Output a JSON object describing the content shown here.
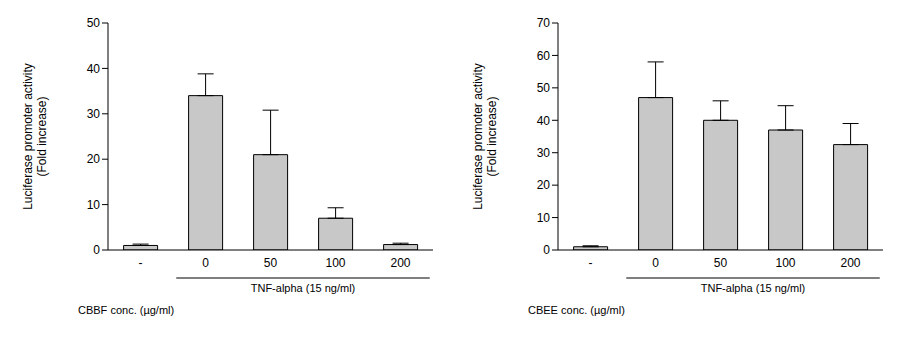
{
  "chart_data": [
    {
      "type": "bar",
      "categories": [
        "-",
        "0",
        "50",
        "100",
        "200"
      ],
      "values": [
        1,
        34,
        21,
        7,
        1.2
      ],
      "errors": [
        0.3,
        4.8,
        9.8,
        2.3,
        0.3
      ],
      "color": "#c8c8c8",
      "ylim": [
        0,
        50
      ],
      "yticks": [
        0,
        10,
        20,
        30,
        40,
        50
      ],
      "ylabel": "Luciferase promoter activity\n(Fold increase)",
      "xlabel": "CBBF conc. (µg/ml)",
      "annotation": {
        "text": "TNF-alpha  (15 ng/ml)",
        "categories": [
          "0",
          "50",
          "100",
          "200"
        ]
      }
    },
    {
      "type": "bar",
      "categories": [
        "-",
        "0",
        "50",
        "100",
        "200"
      ],
      "values": [
        1,
        47,
        40,
        37,
        32.5
      ],
      "errors": [
        0.3,
        11,
        6,
        7.5,
        6.5
      ],
      "color": "#c8c8c8",
      "ylim": [
        0,
        70
      ],
      "yticks": [
        0,
        10,
        20,
        30,
        40,
        50,
        60,
        70
      ],
      "ylabel": "Luciferase promoter activity\n(Fold increase)",
      "xlabel": "CBEE conc. (µg/ml)",
      "annotation": {
        "text": "TNF-alpha  (15 ng/ml)",
        "categories": [
          "0",
          "50",
          "100",
          "200"
        ]
      }
    }
  ]
}
